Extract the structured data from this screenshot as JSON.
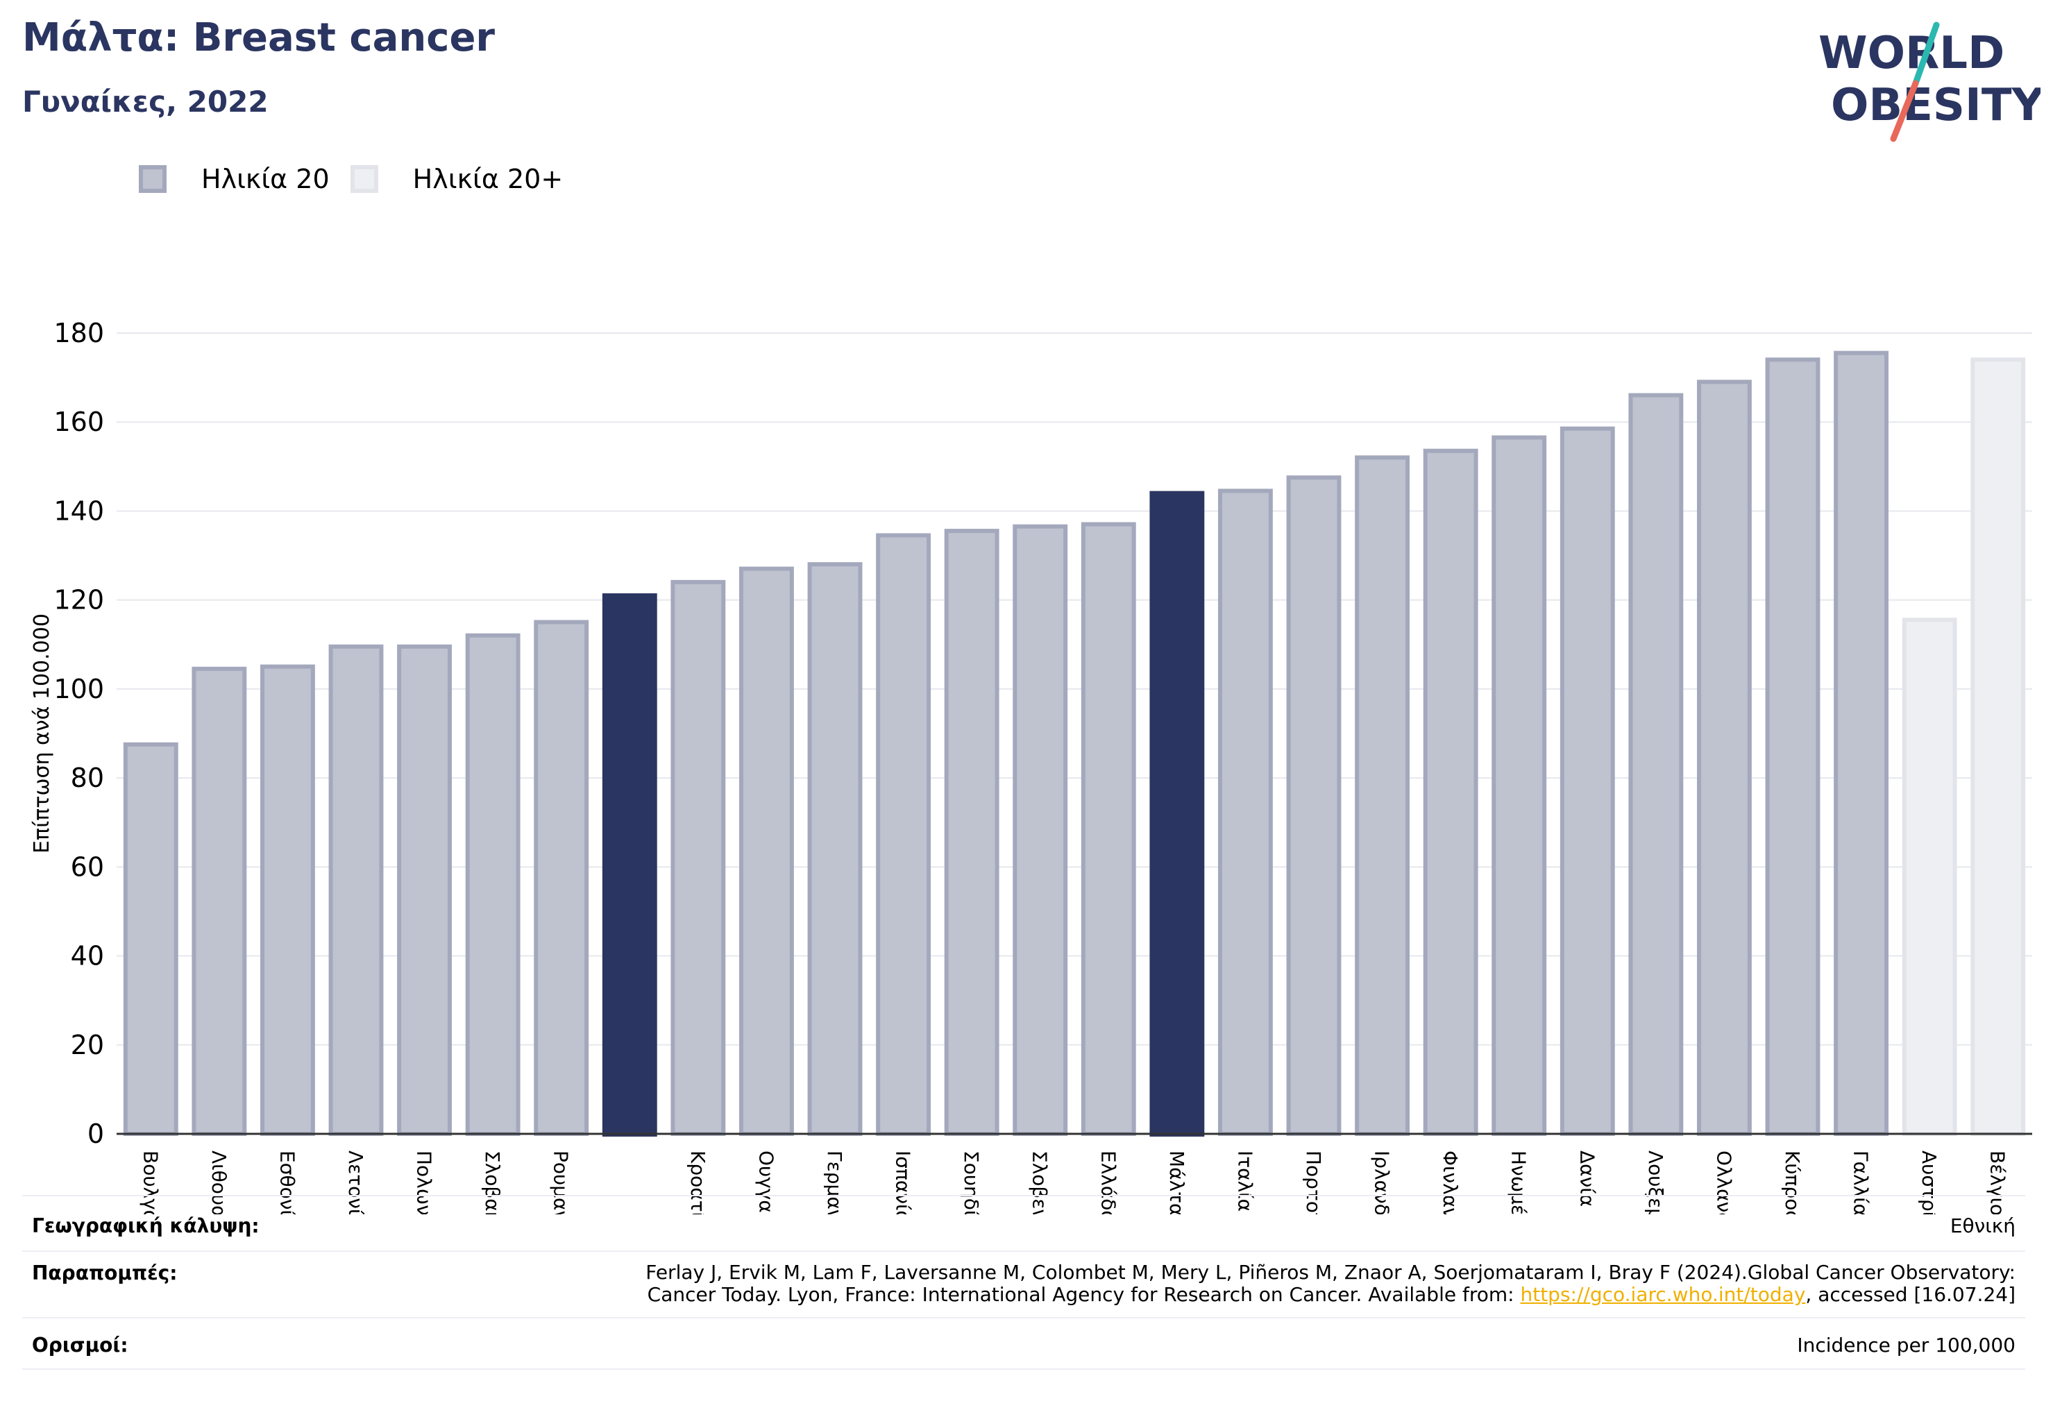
{
  "header": {
    "title": "Μάλτα: Breast cancer",
    "subtitle": "Γυναίκες, 2022"
  },
  "logo": {
    "line1": "WORLD",
    "line2": "OBESITY",
    "colors": {
      "text": "#2b3561",
      "slash_top": "#2bb8b0",
      "slash_bottom": "#e8685a"
    }
  },
  "legend": {
    "items": [
      {
        "label": "Ηλικία 20",
        "fill": "#bfc2cf",
        "stroke": "#a3a8bc"
      },
      {
        "label": "Ηλικία 20+",
        "fill": "#eeeff3",
        "stroke": "#e3e4ea"
      }
    ]
  },
  "chart_data": {
    "type": "bar",
    "ylabel": "Επίπτωση ανά 100.000",
    "ylim": [
      0,
      180
    ],
    "yticks": [
      0,
      20,
      40,
      60,
      80,
      100,
      120,
      140,
      160,
      180
    ],
    "grid": true,
    "categories": [
      "Βουλγαρία",
      "Λιθουανία",
      "Εσθονία",
      "Λετονία",
      "Πολωνία",
      "Σλοβακία",
      "Ρουμανία",
      "",
      "Κροατία",
      "Ουγγαρία",
      "Γερμανία",
      "Ισπανία",
      "Σουηδία",
      "Σλοβενία",
      "Ελλάδα",
      "Μάλτα",
      "Ιταλία",
      "Πορτογαλία",
      "Ιρλανδία",
      "Φινλανδία",
      "Ηνωμένο Βασίλειο",
      "Δανία",
      "Λουξεμβούργο",
      "Ολλανδία",
      "Κύπρος",
      "Γαλλία",
      "Αυστρία",
      "Βέλγιο"
    ],
    "values": [
      88,
      105,
      105.5,
      110,
      110,
      112.5,
      115.5,
      121.5,
      124.5,
      127.5,
      128.5,
      135,
      136,
      137,
      137.5,
      144.5,
      145,
      148,
      152.5,
      154,
      157,
      159,
      166.5,
      169.5,
      174.5,
      176,
      116,
      174.5
    ],
    "groups": [
      "20",
      "20",
      "20",
      "20",
      "20",
      "20",
      "20",
      "highlight",
      "20",
      "20",
      "20",
      "20",
      "20",
      "20",
      "20",
      "highlight",
      "20",
      "20",
      "20",
      "20",
      "20",
      "20",
      "20",
      "20",
      "20",
      "20",
      "20+",
      "20+"
    ],
    "colors": {
      "20": {
        "fill": "#bfc2cf",
        "stroke": "#a3a8bc"
      },
      "20+": {
        "fill": "#eeeff3",
        "stroke": "#e3e4ea"
      },
      "highlight": {
        "fill": "#2b3561",
        "stroke": "#2b3561"
      }
    },
    "legend_position": "top-left"
  },
  "footer": {
    "coverage_label": "Γεωγραφική κάλυψη:",
    "coverage_value": "Εθνική",
    "refs_label": "Παραπομπές:",
    "refs_line1": "Ferlay J, Ervik M, Lam F, Laversanne M, Colombet M, Mery L, Piñeros M, Znaor A, Soerjomataram I, Bray F (2024).Global Cancer Observatory:",
    "refs_line2_pre": "Cancer Today. Lyon, France: International Agency for Research on Cancer. Available from: ",
    "refs_link": "https://gco.iarc.who.int/today",
    "refs_line2_post": ", accessed [16.07.24]",
    "definitions_label": "Ορισμοί:",
    "definitions_value": "Incidence per 100,000"
  }
}
